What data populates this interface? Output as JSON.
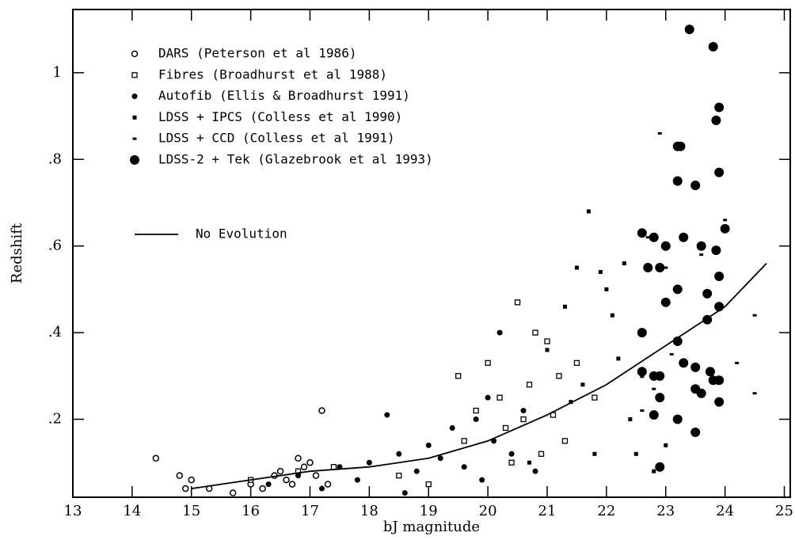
{
  "chart_data": {
    "type": "scatter",
    "xlabel": "bJ magnitude",
    "ylabel": "Redshift",
    "xlim": [
      13,
      25.1
    ],
    "ylim": [
      0.02,
      1.146
    ],
    "xticks": [
      13,
      14,
      15,
      16,
      17,
      18,
      19,
      20,
      21,
      22,
      23,
      24,
      25
    ],
    "yticks": [
      {
        "value": 0.2,
        "label": ".2"
      },
      {
        "value": 0.4,
        "label": ".4"
      },
      {
        "value": 0.6,
        "label": ".6"
      },
      {
        "value": 0.8,
        "label": ".8"
      },
      1
    ],
    "series": [
      {
        "name": "DARS (Peterson et al 1986)",
        "marker": "open-circle",
        "color": "#000000",
        "x": [
          14.4,
          14.8,
          15.0,
          15.3,
          16.0,
          16.5,
          16.8,
          17.2,
          16.9,
          17.1,
          16.2,
          15.7,
          16.6,
          17.3,
          16.4,
          17.0,
          16.7,
          14.9
        ],
        "y": [
          0.11,
          0.07,
          0.06,
          0.04,
          0.05,
          0.08,
          0.11,
          0.22,
          0.09,
          0.07,
          0.04,
          0.03,
          0.06,
          0.05,
          0.07,
          0.1,
          0.05,
          0.04
        ]
      },
      {
        "name": "Fibres (Broadhurst et al 1988)",
        "marker": "open-square",
        "color": "#000000",
        "x": [
          19.5,
          20.0,
          20.5,
          20.8,
          21.0,
          21.2,
          20.2,
          20.6,
          19.8,
          21.5,
          21.3,
          20.9,
          20.4,
          18.5,
          19.0,
          21.8,
          20.7,
          19.6,
          21.1,
          20.3,
          16.0,
          16.8,
          17.4
        ],
        "y": [
          0.3,
          0.33,
          0.47,
          0.4,
          0.38,
          0.3,
          0.25,
          0.2,
          0.22,
          0.33,
          0.15,
          0.12,
          0.1,
          0.07,
          0.05,
          0.25,
          0.28,
          0.15,
          0.21,
          0.18,
          0.06,
          0.08,
          0.09
        ]
      },
      {
        "name": "Autofib (Ellis & Broadhurst 1991)",
        "marker": "dot",
        "color": "#000000",
        "x": [
          16.3,
          16.8,
          17.2,
          17.5,
          17.8,
          18.0,
          18.3,
          18.5,
          18.8,
          19.0,
          19.2,
          19.4,
          19.6,
          19.8,
          20.0,
          20.1,
          20.2,
          20.4,
          20.6,
          20.8,
          19.9,
          18.6
        ],
        "y": [
          0.05,
          0.07,
          0.04,
          0.09,
          0.06,
          0.1,
          0.21,
          0.12,
          0.08,
          0.14,
          0.11,
          0.18,
          0.09,
          0.2,
          0.25,
          0.15,
          0.4,
          0.12,
          0.22,
          0.08,
          0.06,
          0.03
        ]
      },
      {
        "name": "LDSS + IPCS (Colless et al 1990)",
        "marker": "square",
        "color": "#000000",
        "x": [
          21.0,
          21.3,
          21.5,
          21.7,
          21.9,
          22.1,
          22.2,
          22.4,
          22.6,
          22.8,
          23.0,
          21.6,
          22.0,
          21.8,
          22.3,
          20.7,
          21.4,
          22.5
        ],
        "y": [
          0.36,
          0.46,
          0.55,
          0.68,
          0.54,
          0.44,
          0.34,
          0.2,
          0.3,
          0.08,
          0.14,
          0.28,
          0.5,
          0.12,
          0.56,
          0.1,
          0.24,
          0.12
        ]
      },
      {
        "name": "LDSS + CCD (Colless et al 1991)",
        "marker": "dash",
        "color": "#000000",
        "x": [
          22.9,
          24.0,
          23.0,
          22.7,
          23.6,
          24.5,
          24.2,
          22.8,
          24.5,
          23.1,
          22.6
        ],
        "y": [
          0.86,
          0.66,
          0.55,
          0.62,
          0.58,
          0.44,
          0.33,
          0.27,
          0.26,
          0.35,
          0.22
        ]
      },
      {
        "name": "LDSS-2 + Tek (Glazebrook et al 1993)",
        "marker": "big-dot",
        "color": "#000000",
        "x": [
          23.4,
          23.8,
          23.9,
          23.85,
          23.2,
          23.25,
          23.2,
          23.5,
          23.9,
          24.0,
          22.6,
          22.8,
          23.3,
          23.6,
          23.0,
          22.9,
          23.85,
          23.9,
          23.7,
          23.9,
          23.0,
          23.2,
          22.7,
          22.6,
          23.2,
          23.7,
          23.5,
          23.75,
          23.8,
          23.9,
          23.5,
          23.6,
          22.8,
          22.9,
          22.6,
          23.3,
          22.9,
          22.8,
          23.2,
          23.5,
          22.9,
          23.9
        ],
        "y": [
          1.1,
          1.06,
          0.92,
          0.89,
          0.83,
          0.83,
          0.75,
          0.74,
          0.77,
          0.64,
          0.63,
          0.62,
          0.62,
          0.6,
          0.6,
          0.55,
          0.59,
          0.53,
          0.49,
          0.46,
          0.47,
          0.5,
          0.55,
          0.4,
          0.38,
          0.43,
          0.32,
          0.31,
          0.29,
          0.29,
          0.27,
          0.26,
          0.3,
          0.3,
          0.31,
          0.33,
          0.25,
          0.21,
          0.2,
          0.17,
          0.09,
          0.24
        ]
      }
    ],
    "curve": {
      "name": "No Evolution",
      "color": "#000000",
      "x": [
        15.0,
        16.0,
        17.0,
        18.0,
        19.0,
        20.0,
        21.0,
        22.0,
        23.0,
        24.0,
        24.7
      ],
      "y": [
        0.04,
        0.06,
        0.08,
        0.09,
        0.11,
        0.15,
        0.21,
        0.28,
        0.37,
        0.46,
        0.56
      ]
    }
  }
}
